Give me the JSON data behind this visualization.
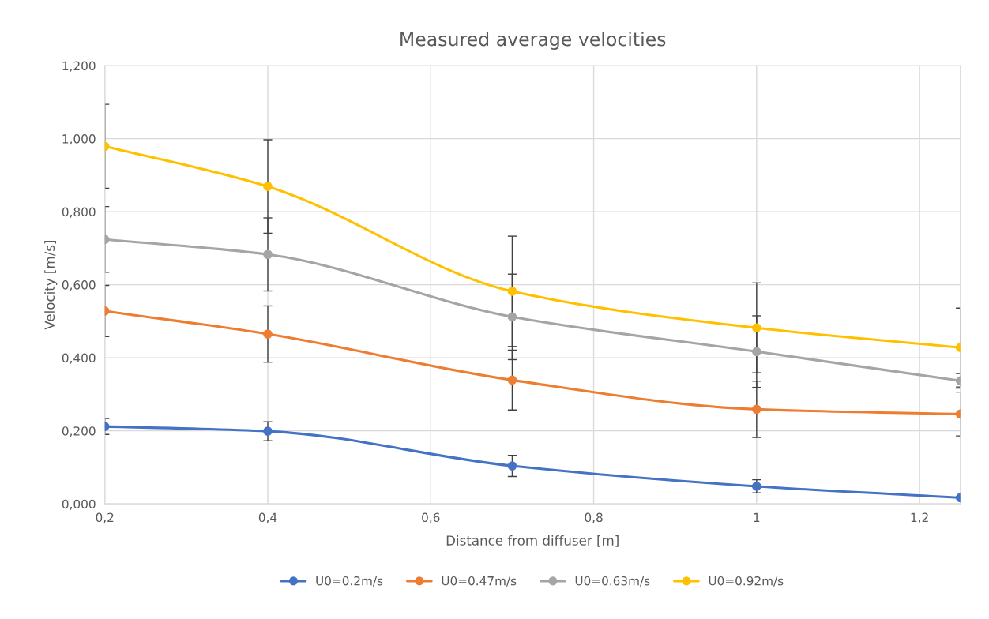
{
  "chart_data": {
    "type": "line",
    "title": "Measured average velocities",
    "xlabel": "Distance from diffuser [m]",
    "ylabel": "Velocity [m/s]",
    "x": [
      0.2,
      0.4,
      0.7,
      1,
      1.25
    ],
    "series": [
      {
        "name": "U0=0.2m/s",
        "color": "#4472c4",
        "values": [
          0.212,
          0.199,
          0.104,
          0.048,
          0.017
        ],
        "errors": [
          0.022,
          0.026,
          0.029,
          0.018,
          null
        ]
      },
      {
        "name": "U0=0.47m/s",
        "color": "#ed7d31",
        "values": [
          0.528,
          0.465,
          0.339,
          0.259,
          0.246
        ],
        "errors": [
          0.07,
          0.077,
          0.082,
          0.077,
          0.06
        ]
      },
      {
        "name": "U0=0.63m/s",
        "color": "#a5a5a5",
        "values": [
          0.724,
          0.683,
          0.512,
          0.417,
          0.337
        ],
        "errors": [
          0.09,
          0.1,
          0.117,
          0.098,
          0.02
        ]
      },
      {
        "name": "U0=0.92m/s",
        "color": "#ffc000",
        "values": [
          0.979,
          0.869,
          0.582,
          0.482,
          0.428
        ],
        "errors": [
          0.115,
          0.128,
          0.151,
          0.123,
          0.108
        ]
      }
    ],
    "xlim": [
      0.2,
      1.25
    ],
    "xticks": [
      {
        "value": 0.2,
        "label": "0,2"
      },
      {
        "value": 0.4,
        "label": "0,4"
      },
      {
        "value": 0.6,
        "label": "0,6"
      },
      {
        "value": 0.8,
        "label": "0,8"
      },
      {
        "value": 1,
        "label": "1"
      },
      {
        "value": 1.2,
        "label": "1,2"
      }
    ],
    "ylim": [
      0,
      1.2
    ],
    "yticks": [
      {
        "value": 0,
        "label": "0,000"
      },
      {
        "value": 0.2,
        "label": "0,200"
      },
      {
        "value": 0.4,
        "label": "0,400"
      },
      {
        "value": 0.6,
        "label": "0,600"
      },
      {
        "value": 0.8,
        "label": "0,800"
      },
      {
        "value": 1,
        "label": "1,000"
      },
      {
        "value": 1.2,
        "label": "1,200"
      }
    ],
    "grid": true,
    "legend": "bottom",
    "marker": "circle",
    "line_style": "solid"
  }
}
